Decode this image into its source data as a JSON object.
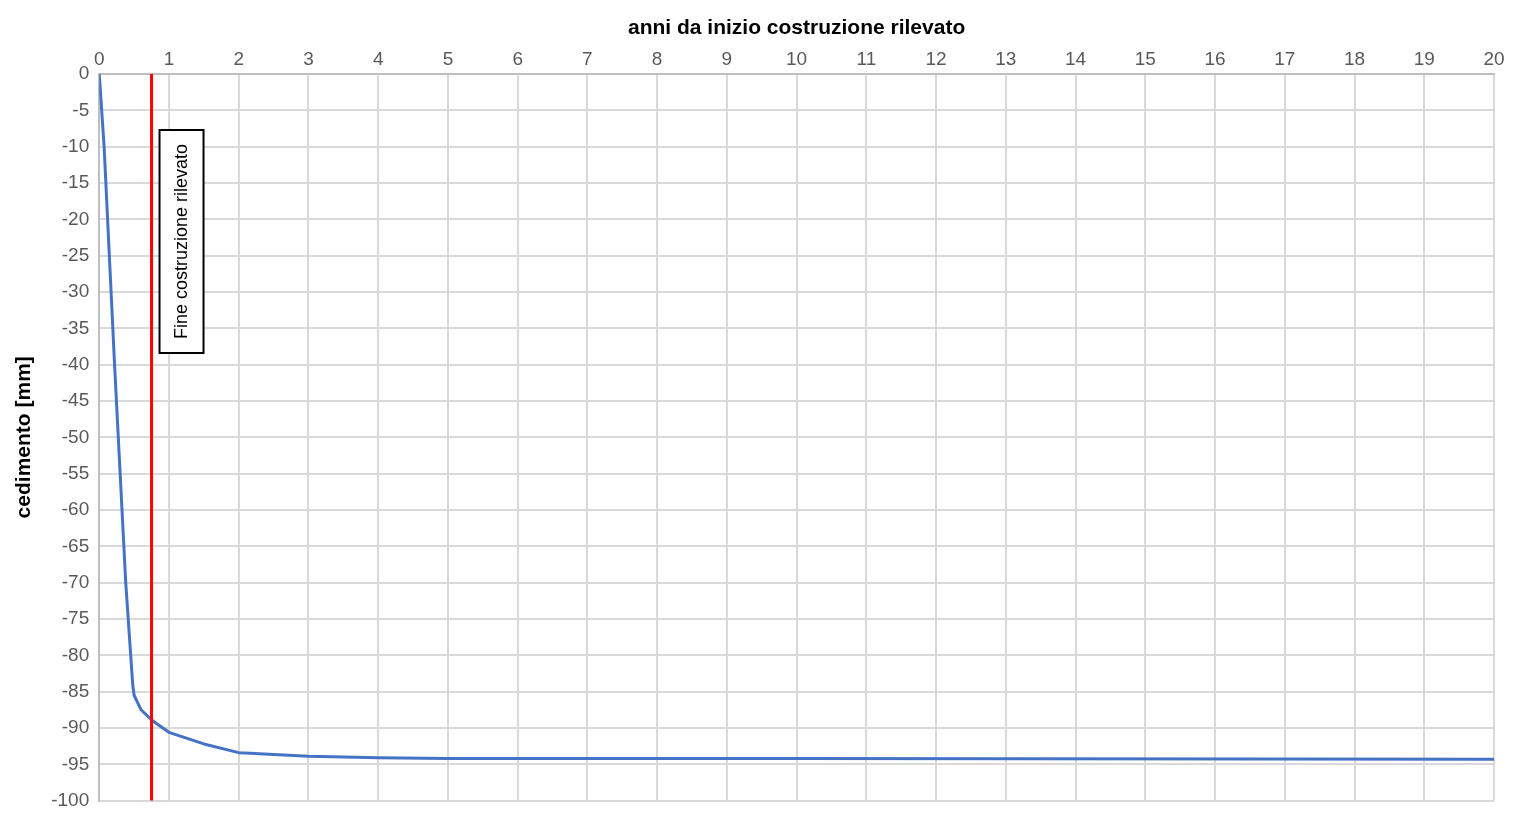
{
  "chart_data": {
    "type": "line",
    "xlabel": "anni da inizio costruzione rilevato",
    "ylabel": "cedimento [mm]",
    "xlim": [
      0,
      20
    ],
    "xticks": [
      0,
      1,
      2,
      3,
      4,
      5,
      6,
      7,
      8,
      9,
      10,
      11,
      12,
      13,
      14,
      15,
      16,
      17,
      18,
      19,
      20
    ],
    "ylim": [
      -100,
      0
    ],
    "yticks": [
      -100,
      -95,
      -90,
      -85,
      -80,
      -75,
      -70,
      -65,
      -60,
      -55,
      -50,
      -45,
      -40,
      -35,
      -30,
      -25,
      -20,
      -15,
      -10,
      -5,
      0
    ],
    "grid": true,
    "legend": false,
    "marker": "none",
    "line_style": "solid",
    "series": [
      {
        "color": "#4472c4",
        "x": [
          0,
          0.07,
          0.22,
          0.38,
          0.48,
          0.5,
          0.6,
          0.75,
          1,
          1.5,
          2,
          3,
          4,
          5,
          10,
          20
        ],
        "values": [
          0,
          -10,
          -40,
          -70,
          -84,
          -85.5,
          -87.5,
          -88.9,
          -90.6,
          -92.2,
          -93.4,
          -93.9,
          -94.1,
          -94.2,
          -94.2,
          -94.3
        ]
      }
    ],
    "ref_lines": [
      {
        "axis": "x",
        "value": 0.75,
        "label": "Fine costruzione rilevato",
        "color": "#ff0000",
        "line_style": "solid"
      }
    ]
  }
}
